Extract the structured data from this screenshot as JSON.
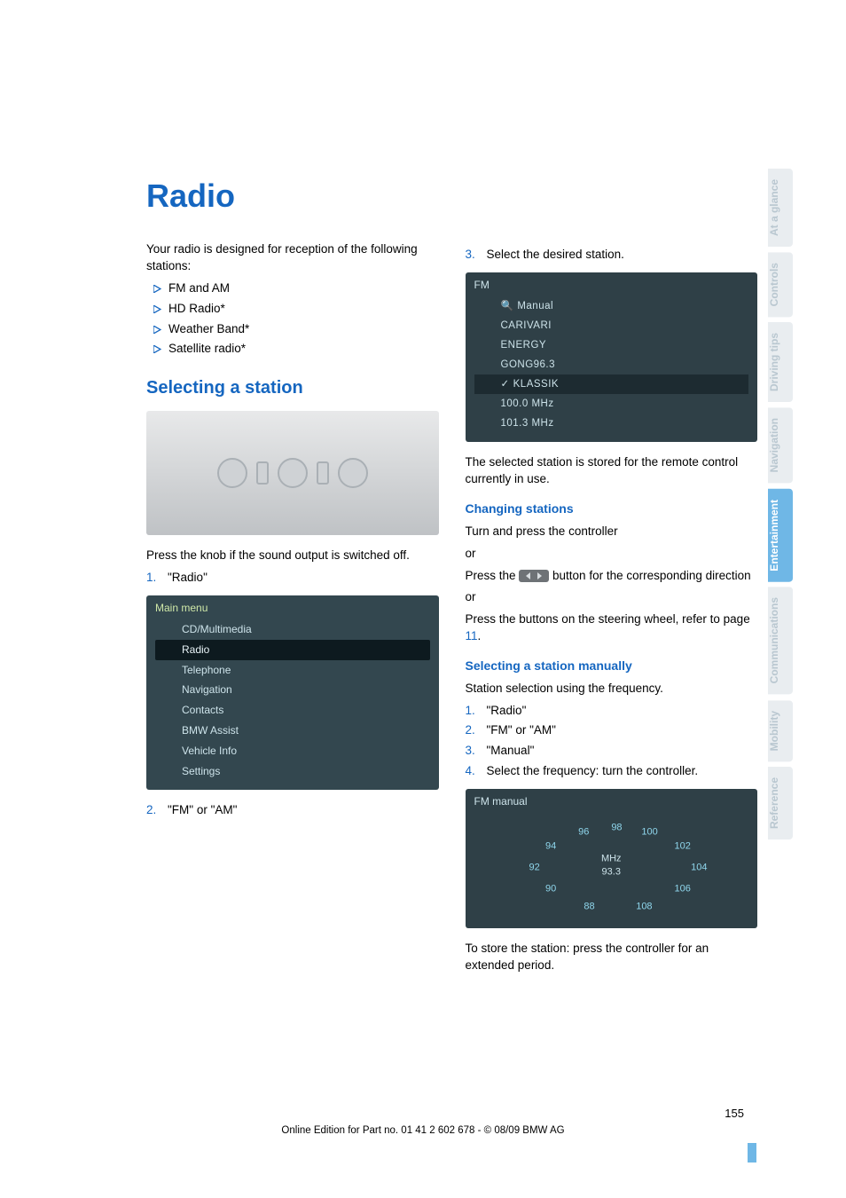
{
  "colors": {
    "title": "#1566c0",
    "section": "#1566c0",
    "sub": "#1566c0",
    "step_num": "#1566c0",
    "triangle": "#1566c0",
    "link": "#1566c0",
    "tab_active_bg": "#6fb7e6",
    "tab_active_fg": "#ffffff",
    "tab_inactive_bg": "#e9edf0",
    "tab_inactive_fg": "#b9c7d0"
  },
  "title": "Radio",
  "intro": "Your radio is designed for reception of the following stations:",
  "stations": [
    "FM and AM",
    "HD Radio*",
    "Weather Band*",
    "Satellite radio*"
  ],
  "section_select": "Selecting a station",
  "press_knob": "Press the knob if the sound output is switched off.",
  "left_steps": [
    "\"Radio\"",
    "\"FM\" or \"AM\""
  ],
  "menu": {
    "header": "Main menu",
    "items": [
      "CD/Multimedia",
      "Radio",
      "Telephone",
      "Navigation",
      "Contacts",
      "BMW Assist",
      "Vehicle Info",
      "Settings"
    ],
    "selected_index": 1
  },
  "right_step3": "Select the desired station.",
  "fm": {
    "header": "FM",
    "items": [
      "Manual",
      "CARIVARI",
      "ENERGY",
      "GONG96.3",
      "KLASSIK",
      "100.0 MHz",
      "101.3 MHz"
    ],
    "selected_index": 4
  },
  "stored_text": "The selected station is stored for the remote control currently in use.",
  "sub_changing": "Changing stations",
  "changing_p1": "Turn and press the controller",
  "or": "or",
  "changing_p2a": "Press the ",
  "changing_p2b": " button for the corresponding direction",
  "changing_p3a": "Press the buttons on the steering wheel, refer to page ",
  "changing_p3b": "11",
  "changing_p3c": ".",
  "sub_manual": "Selecting a station manually",
  "manual_p": "Station selection using the frequency.",
  "manual_steps": [
    "\"Radio\"",
    "\"FM\" or \"AM\"",
    "\"Manual\"",
    "Select the frequency: turn the controller."
  ],
  "dial": {
    "header": "FM manual",
    "ticks": [
      {
        "label": "88",
        "x": 42,
        "y": 88
      },
      {
        "label": "90",
        "x": 28,
        "y": 72
      },
      {
        "label": "92",
        "x": 22,
        "y": 52
      },
      {
        "label": "94",
        "x": 28,
        "y": 32
      },
      {
        "label": "96",
        "x": 40,
        "y": 18
      },
      {
        "label": "98",
        "x": 52,
        "y": 14
      },
      {
        "label": "100",
        "x": 64,
        "y": 18
      },
      {
        "label": "102",
        "x": 76,
        "y": 32
      },
      {
        "label": "104",
        "x": 82,
        "y": 52
      },
      {
        "label": "106",
        "x": 76,
        "y": 72
      },
      {
        "label": "108",
        "x": 62,
        "y": 88
      }
    ],
    "center_top": "MHz",
    "center_val": "93.3"
  },
  "store_text": "To store the station: press the controller for an extended period.",
  "tabs": [
    {
      "label": "At a glance",
      "active": false
    },
    {
      "label": "Controls",
      "active": false
    },
    {
      "label": "Driving tips",
      "active": false
    },
    {
      "label": "Navigation",
      "active": false
    },
    {
      "label": "Entertainment",
      "active": true
    },
    {
      "label": "Communications",
      "active": false
    },
    {
      "label": "Mobility",
      "active": false
    },
    {
      "label": "Reference",
      "active": false
    }
  ],
  "page_number": "155",
  "footer": "Online Edition for Part no. 01 41 2 602 678 - © 08/09 BMW AG"
}
